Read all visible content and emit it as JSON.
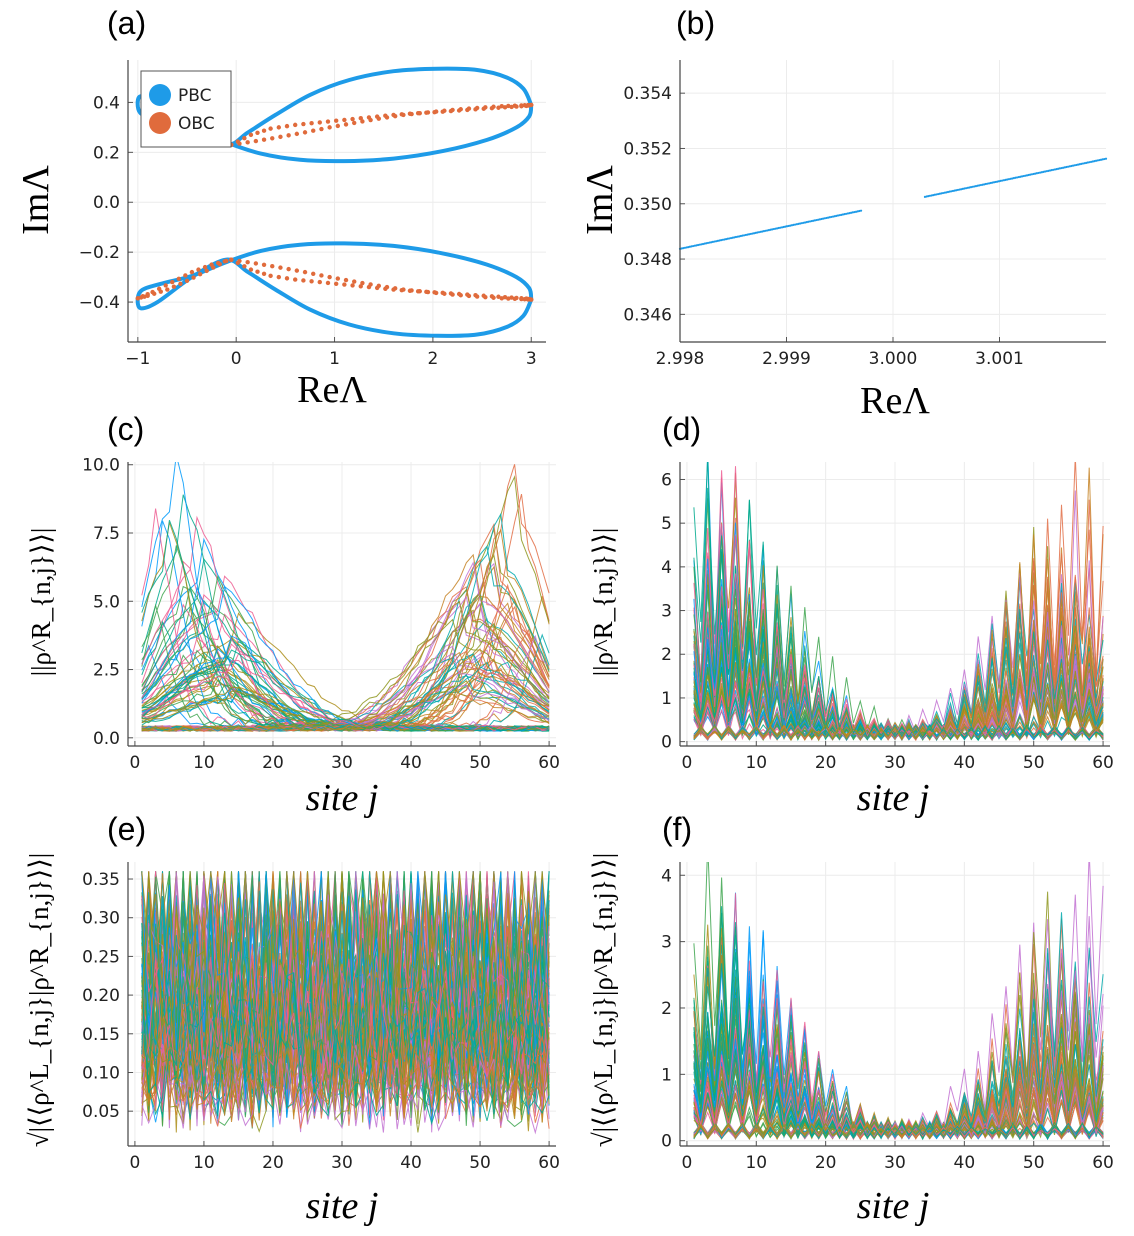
{
  "colors": {
    "blue": "#1e9be8",
    "orange": "#e06b3c",
    "grid": "#ececec",
    "axis": "#555555",
    "palette": [
      "#009afa",
      "#e26f46",
      "#3da44d",
      "#c271d2",
      "#ac8d18",
      "#00a9ad",
      "#ed5d92",
      "#c68225",
      "#00a98d",
      "#8e971e"
    ]
  },
  "chart_data": [
    {
      "id": "a",
      "panel_label": "(a)",
      "type": "scatter",
      "xlabel": "ReΛ",
      "ylabel": "ImΛ",
      "xlim": [
        -1.1,
        3.15
      ],
      "ylim": [
        -0.56,
        0.57
      ],
      "xticks": [
        -1,
        0,
        1,
        2,
        3
      ],
      "xtick_labels": [
        "−1",
        "0",
        "1",
        "2",
        "3"
      ],
      "yticks": [
        -0.4,
        -0.2,
        0.0,
        0.2,
        0.4
      ],
      "ytick_labels": [
        "−0.4",
        "−0.2",
        "0.0",
        "0.2",
        "0.4"
      ],
      "legend": {
        "position": "top-left",
        "entries": [
          "PBC",
          "OBC"
        ]
      },
      "series": [
        {
          "name": "PBC",
          "kind": "closed-curve",
          "branches": [
            {
              "x": [
                3.0,
                2.92,
                2.75,
                2.45,
                2.05,
                1.6,
                1.15,
                0.75,
                0.4,
                0.12,
                -0.1,
                -0.45,
                -0.8,
                -0.97,
                -1.0,
                -0.95,
                -0.75,
                -0.45,
                -0.1,
                0.25,
                0.65,
                1.1,
                1.6,
                2.1,
                2.55,
                2.85,
                2.98,
                3.0
              ],
              "y": [
                0.39,
                0.455,
                0.5,
                0.53,
                0.535,
                0.525,
                0.49,
                0.43,
                0.35,
                0.28,
                0.23,
                0.3,
                0.4,
                0.425,
                0.385,
                0.35,
                0.325,
                0.295,
                0.24,
                0.195,
                0.17,
                0.165,
                0.175,
                0.205,
                0.25,
                0.3,
                0.345,
                0.39
              ]
            },
            {
              "x": [
                3.0,
                2.92,
                2.75,
                2.45,
                2.05,
                1.6,
                1.15,
                0.75,
                0.4,
                0.12,
                -0.1,
                -0.45,
                -0.8,
                -0.97,
                -1.0,
                -0.95,
                -0.75,
                -0.45,
                -0.1,
                0.25,
                0.65,
                1.1,
                1.6,
                2.1,
                2.55,
                2.85,
                2.98,
                3.0
              ],
              "y": [
                -0.39,
                -0.455,
                -0.5,
                -0.53,
                -0.535,
                -0.525,
                -0.49,
                -0.43,
                -0.35,
                -0.28,
                -0.23,
                -0.3,
                -0.4,
                -0.425,
                -0.385,
                -0.35,
                -0.325,
                -0.295,
                -0.24,
                -0.195,
                -0.17,
                -0.165,
                -0.175,
                -0.205,
                -0.25,
                -0.3,
                -0.345,
                -0.39
              ]
            }
          ]
        },
        {
          "name": "OBC",
          "kind": "points",
          "branches": [
            {
              "x": [
                -0.05,
                0.2,
                0.45,
                0.7,
                0.95,
                1.2,
                1.45,
                1.7,
                1.95,
                2.2,
                2.45,
                2.7,
                2.9,
                3.0
              ],
              "y": [
                0.23,
                0.245,
                0.262,
                0.28,
                0.3,
                0.318,
                0.335,
                0.35,
                0.36,
                0.37,
                0.378,
                0.385,
                0.388,
                0.39
              ]
            },
            {
              "x": [
                -0.05,
                0.15,
                0.35,
                0.6,
                0.85,
                1.1,
                1.35,
                1.6,
                1.85,
                2.1,
                2.35,
                2.6,
                2.8,
                2.95,
                3.0
              ],
              "y": [
                0.23,
                0.27,
                0.295,
                0.31,
                0.32,
                0.33,
                0.34,
                0.35,
                0.357,
                0.363,
                0.37,
                0.377,
                0.382,
                0.386,
                0.39
              ]
            },
            {
              "x": [
                -0.05,
                0.2,
                0.45,
                0.7,
                0.95,
                1.2,
                1.45,
                1.7,
                1.95,
                2.2,
                2.45,
                2.7,
                2.9,
                3.0
              ],
              "y": [
                -0.23,
                -0.245,
                -0.262,
                -0.28,
                -0.3,
                -0.318,
                -0.335,
                -0.35,
                -0.36,
                -0.37,
                -0.378,
                -0.385,
                -0.388,
                -0.39
              ]
            },
            {
              "x": [
                -0.05,
                0.15,
                0.35,
                0.6,
                0.85,
                1.1,
                1.35,
                1.6,
                1.85,
                2.1,
                2.35,
                2.6,
                2.8,
                2.95,
                3.0
              ],
              "y": [
                -0.23,
                -0.27,
                -0.295,
                -0.31,
                -0.32,
                -0.33,
                -0.34,
                -0.35,
                -0.357,
                -0.363,
                -0.37,
                -0.377,
                -0.382,
                -0.386,
                -0.39
              ]
            },
            {
              "x": [
                -0.05,
                -0.25,
                -0.45,
                -0.65,
                -0.85,
                -1.0
              ],
              "y": [
                -0.23,
                -0.25,
                -0.28,
                -0.32,
                -0.36,
                -0.385
              ]
            },
            {
              "x": [
                -0.1,
                -0.3,
                -0.5,
                -0.7,
                -0.9,
                -1.0
              ],
              "y": [
                -0.235,
                -0.275,
                -0.315,
                -0.35,
                -0.375,
                -0.385
              ]
            }
          ]
        }
      ]
    },
    {
      "id": "b",
      "panel_label": "(b)",
      "type": "scatter",
      "xlabel": "ReΛ",
      "ylabel": "ImΛ",
      "xlim": [
        2.998,
        3.002
      ],
      "ylim": [
        0.345,
        0.3552
      ],
      "xticks": [
        2.998,
        2.999,
        3.0,
        3.001
      ],
      "xtick_labels": [
        "2.998",
        "2.999",
        "3.000",
        "3.001"
      ],
      "yticks": [
        0.346,
        0.348,
        0.35,
        0.352,
        0.354
      ],
      "ytick_labels": [
        "0.346",
        "0.348",
        "0.350",
        "0.352",
        "0.354"
      ],
      "series": [
        {
          "name": "PBC",
          "segments": [
            {
              "x": [
                2.998,
                2.9997
              ],
              "y": [
                0.34837,
                0.34975
              ]
            },
            {
              "x": [
                3.0003,
                3.002
              ],
              "y": [
                0.35025,
                0.35163
              ]
            }
          ]
        }
      ]
    },
    {
      "id": "c",
      "panel_label": "(c)",
      "type": "line",
      "xlabel": "site j",
      "ylabel": "||ρ^R_{n,j}⟩⟩|",
      "xlim": [
        -1,
        61
      ],
      "ylim": [
        -0.3,
        10.1
      ],
      "xticks": [
        0,
        10,
        20,
        30,
        40,
        50,
        60
      ],
      "xtick_labels": [
        "0",
        "10",
        "20",
        "30",
        "40",
        "50",
        "60"
      ],
      "yticks": [
        0.0,
        2.5,
        5.0,
        7.5,
        10.0
      ],
      "ytick_labels": [
        "0.0",
        "2.5",
        "5.0",
        "7.5",
        "10.0"
      ],
      "sites": 60,
      "n_series": 120,
      "mode": 1,
      "peak_max": 9.8,
      "center_value": 0.4
    },
    {
      "id": "d",
      "panel_label": "(d)",
      "type": "line",
      "xlabel": "site j",
      "ylabel": "||ρ^R_{n,j}⟩⟩|",
      "xlim": [
        -1,
        61
      ],
      "ylim": [
        -0.1,
        6.4
      ],
      "xticks": [
        0,
        10,
        20,
        30,
        40,
        50,
        60
      ],
      "xtick_labels": [
        "0",
        "10",
        "20",
        "30",
        "40",
        "50",
        "60"
      ],
      "yticks": [
        0,
        1,
        2,
        3,
        4,
        5,
        6
      ],
      "ytick_labels": [
        "0",
        "1",
        "2",
        "3",
        "4",
        "5",
        "6"
      ],
      "sites": 60,
      "n_series": 120,
      "mode": 2,
      "peak_max": 6.3,
      "center_value": 0.35
    },
    {
      "id": "e",
      "panel_label": "(e)",
      "type": "line",
      "xlabel": "site j",
      "ylabel": "√|⟨⟨ρ^L_{n,j}|ρ^R_{n,j}⟩⟩|",
      "xlim": [
        -1,
        61
      ],
      "ylim": [
        0.005,
        0.372
      ],
      "xticks": [
        0,
        10,
        20,
        30,
        40,
        50,
        60
      ],
      "xtick_labels": [
        "0",
        "10",
        "20",
        "30",
        "40",
        "50",
        "60"
      ],
      "yticks": [
        0.05,
        0.1,
        0.15,
        0.2,
        0.25,
        0.3,
        0.35
      ],
      "ytick_labels": [
        "0.05",
        "0.10",
        "0.15",
        "0.20",
        "0.25",
        "0.30",
        "0.35"
      ],
      "sites": 60,
      "n_series": 120,
      "mode": 3,
      "peak_max": 0.36,
      "center_value": 0.2
    },
    {
      "id": "f",
      "panel_label": "(f)",
      "type": "line",
      "xlabel": "site j",
      "ylabel": "√|⟨⟨ρ^L_{n,j}|ρ^R_{n,j}⟩⟩|",
      "xlim": [
        -1,
        61
      ],
      "ylim": [
        -0.08,
        4.2
      ],
      "xticks": [
        0,
        10,
        20,
        30,
        40,
        50,
        60
      ],
      "xtick_labels": [
        "0",
        "10",
        "20",
        "30",
        "40",
        "50",
        "60"
      ],
      "yticks": [
        0,
        1,
        2,
        3,
        4
      ],
      "ytick_labels": [
        "0",
        "1",
        "2",
        "3",
        "4"
      ],
      "sites": 60,
      "n_series": 120,
      "mode": 2,
      "peak_max": 4.1,
      "center_value": 0.25
    }
  ]
}
